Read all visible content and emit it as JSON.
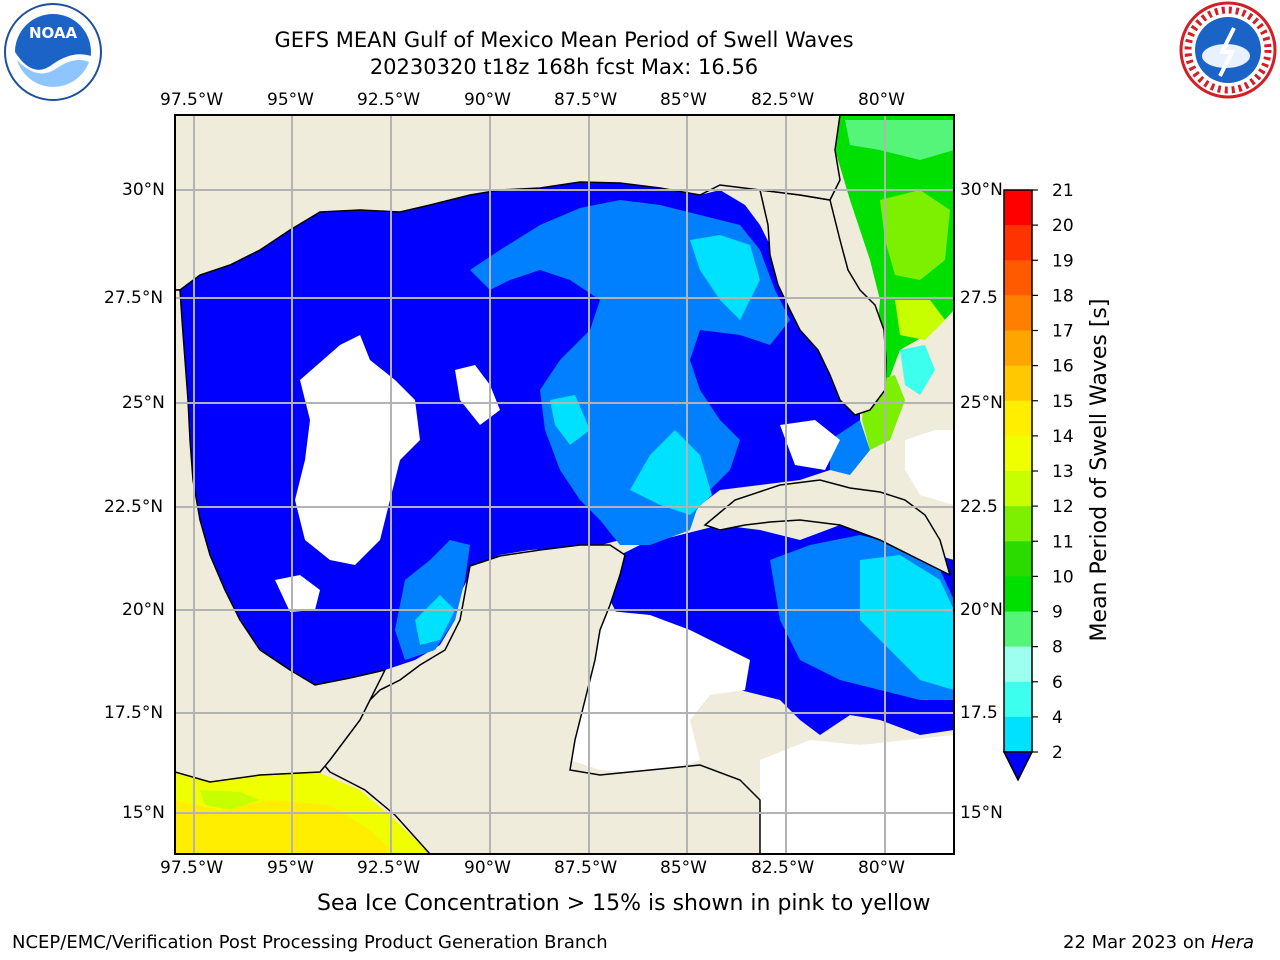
{
  "header": {
    "title_line1": "GEFS MEAN Gulf of Mexico Mean Period of Swell Waves",
    "title_line2": "20230320 t18z 168h fcst   Max: 16.56"
  },
  "logos": {
    "left": "noaa-logo",
    "left_text": "NOAA",
    "right": "national-weather-service-logo"
  },
  "map": {
    "lon_labels": [
      "97.5°W",
      "95°W",
      "92.5°W",
      "90°W",
      "87.5°W",
      "85°W",
      "82.5°W",
      "80°W"
    ],
    "lat_labels": [
      "30°N",
      "27.5°N",
      "25°N",
      "22.5°N",
      "20°N",
      "17.5°N",
      "15°N"
    ],
    "lat_labels_right": [
      "30°N",
      "27.5",
      "25°N",
      "22.5",
      "20°N",
      "17.5",
      "15°N"
    ],
    "colors": {
      "land": "#efecdc",
      "grid": "#b3b3b3",
      "coast": "#000000"
    }
  },
  "colorbar": {
    "label": "Mean Period of Swell Waves [s]",
    "ticks": [
      "21",
      "20",
      "19",
      "18",
      "17",
      "16",
      "15",
      "14",
      "13",
      "12",
      "11",
      "10",
      "9",
      "8",
      "6",
      "4",
      "2"
    ],
    "colors": [
      "#ff0000",
      "#ff3300",
      "#ff5a00",
      "#ff8000",
      "#ffa500",
      "#ffc800",
      "#ffee00",
      "#f0ff00",
      "#c8ff00",
      "#7cf000",
      "#2bdb00",
      "#00e000",
      "#55f57a",
      "#9cfff0",
      "#3cffee",
      "#00e0ff",
      "#0080ff"
    ],
    "under_color": "#0000ff"
  },
  "footer": {
    "sea_ice_note": "Sea Ice Concentration > 15% is shown in pink to yellow",
    "branch": "NCEP/EMC/Verification Post Processing Product Generation Branch",
    "date": "22 Mar 2023 on",
    "host": "Hera"
  }
}
